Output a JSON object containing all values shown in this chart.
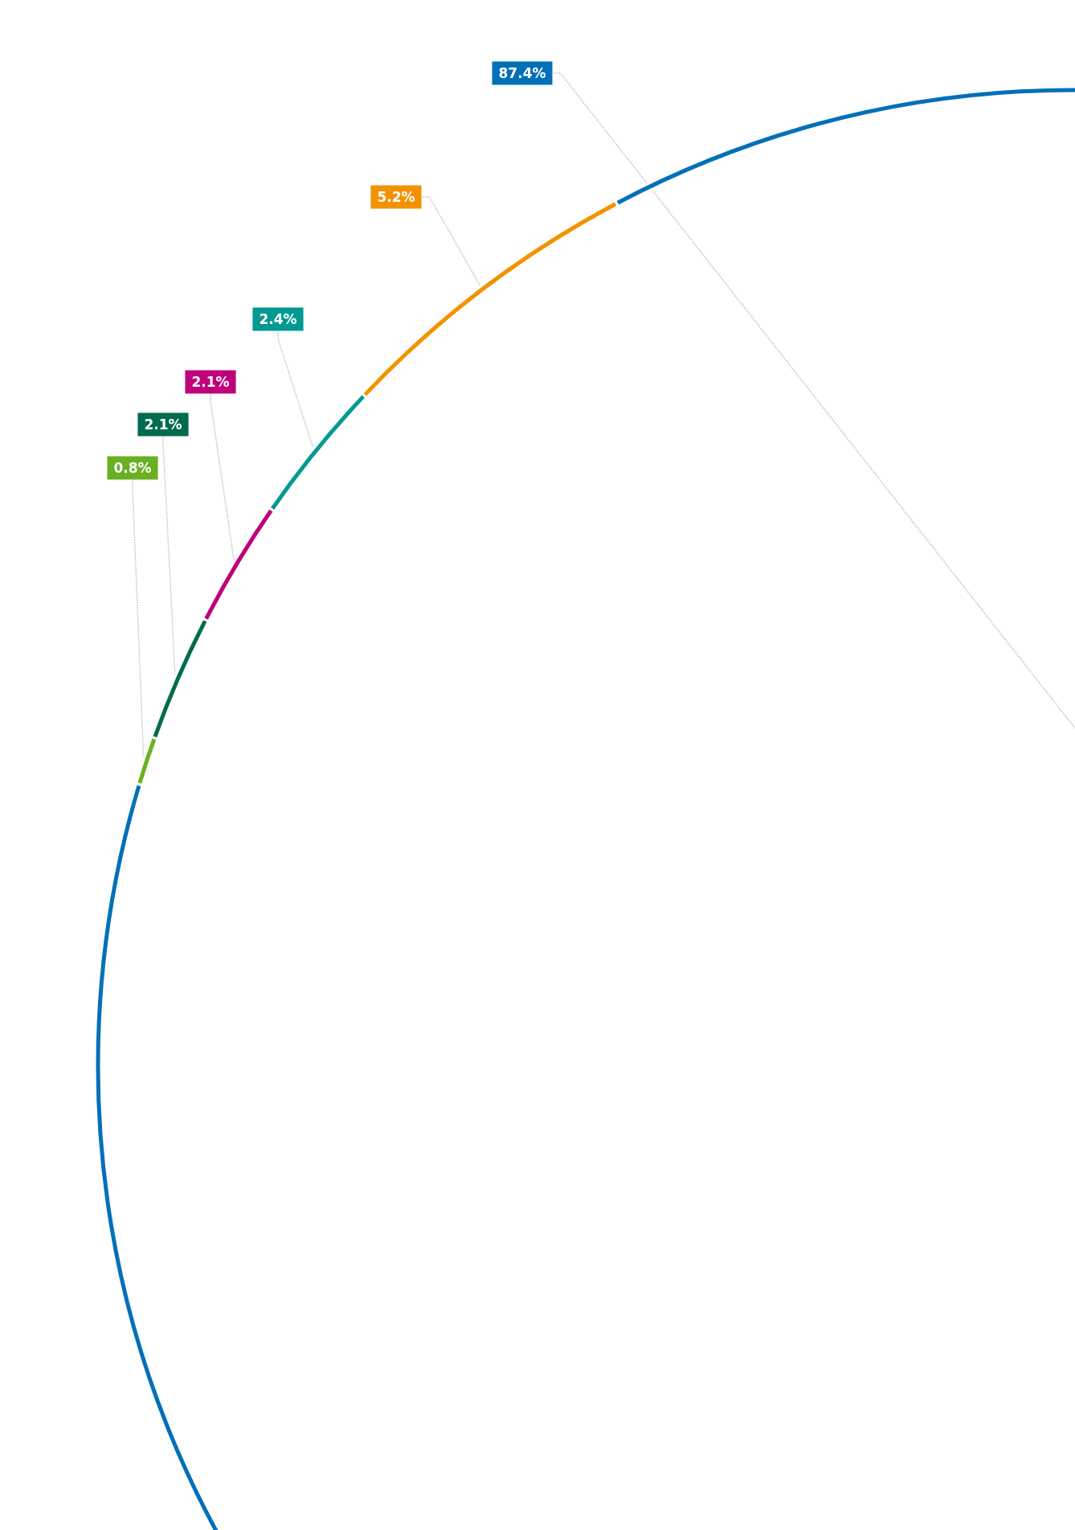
{
  "chart_data": {
    "type": "donut",
    "categories": [
      null,
      null,
      null,
      null,
      null,
      null
    ],
    "values": [
      87.4,
      0.8,
      2.1,
      2.1,
      2.4,
      5.2
    ],
    "colors": [
      "#0070b8",
      "#6ab023",
      "#006b4f",
      "#c0007a",
      "#009a93",
      "#f39200"
    ],
    "value_labels": [
      "87.4%",
      "0.8%",
      "2.1%",
      "2.1%",
      "2.4%",
      "5.2%"
    ]
  }
}
